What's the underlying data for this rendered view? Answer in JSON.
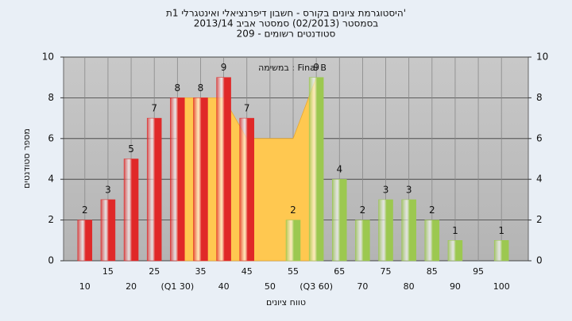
{
  "chart_data": {
    "type": "bar",
    "title": [
      "'היסטוגרמת ציונים בקורס - חשבון דיפרנציאלי ואינטגרלי 1ת",
      "בסמסטר  (02/2013)  סמסטר אביב 2013/14",
      "סטודנטים רשומים - 209"
    ],
    "annotation": "במשימה : Final B",
    "xlabel": "טווח ציונים",
    "ylabel": "מספר סטודנטים",
    "x": [
      10,
      15,
      20,
      25,
      30,
      35,
      40,
      45,
      50,
      55,
      60,
      65,
      70,
      75,
      80,
      85,
      90,
      95,
      100
    ],
    "xlim": [
      5.4,
      105.8
    ],
    "xticks": [
      10,
      15,
      20,
      25,
      {
        "value": 30,
        "label": "(Q1 30)"
      },
      35,
      40,
      45,
      50,
      55,
      {
        "value": 60,
        "label": "(Q3 60)"
      },
      65,
      70,
      75,
      80,
      85,
      90,
      95,
      100
    ],
    "ylim": [
      0,
      10
    ],
    "yticks": [
      0,
      2,
      4,
      6,
      8,
      10
    ],
    "grid": true,
    "area": {
      "color": "#ffc850",
      "x": [
        30,
        35,
        40,
        45,
        50,
        55,
        60
      ],
      "values": [
        8,
        8,
        8,
        6,
        6,
        6,
        9
      ]
    },
    "series": [
      {
        "color": "#e02828",
        "values": [
          2,
          3,
          5,
          7,
          8,
          8,
          9,
          7,
          null,
          null,
          null,
          null,
          null,
          null,
          null,
          null,
          null,
          null,
          null
        ]
      },
      {
        "color": "#9cc850",
        "values": [
          null,
          null,
          null,
          null,
          null,
          null,
          null,
          null,
          null,
          2,
          9,
          4,
          2,
          3,
          3,
          2,
          1,
          null,
          1
        ]
      }
    ]
  }
}
